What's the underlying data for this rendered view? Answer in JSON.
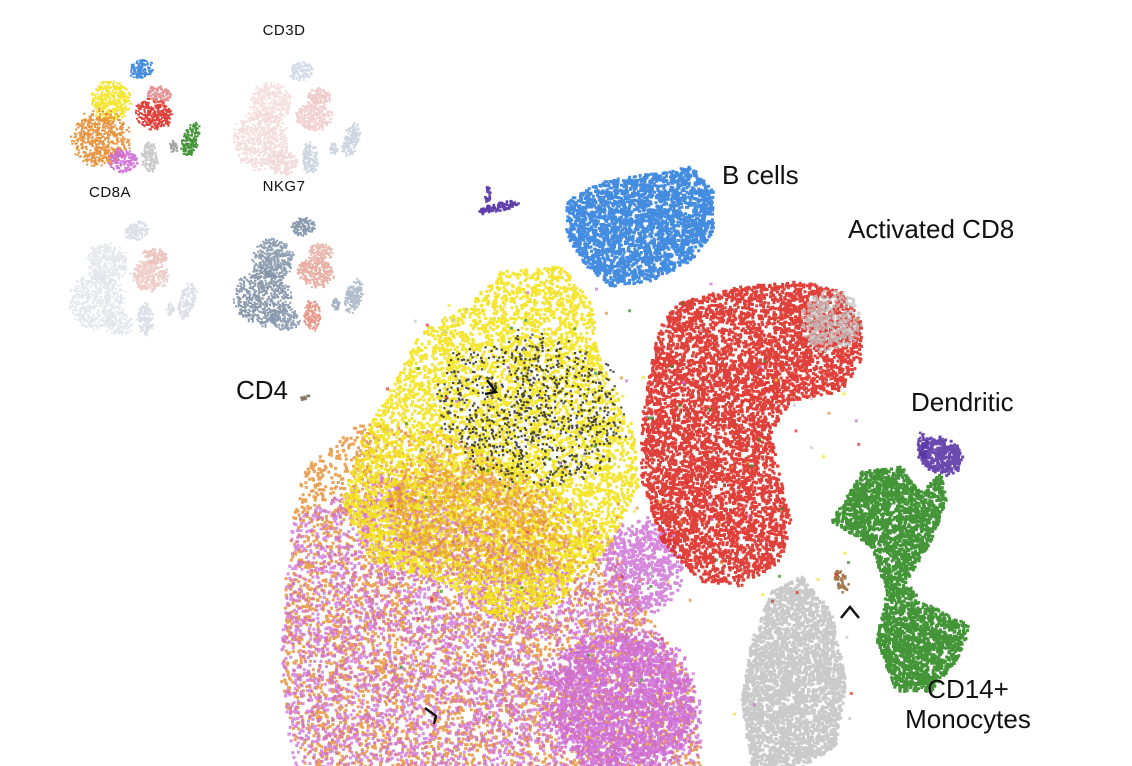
{
  "main_plot": {
    "labels": {
      "b_cells": "B cells",
      "activated_cd8": "Activated CD8",
      "cd4": "CD4",
      "dendritic": "Dendritic",
      "cd14_line1": "CD14+",
      "cd14_line2": "Monocytes"
    },
    "colors": {
      "b_cells": "#2f7fdc",
      "cd4_yellow": "#f2e21a",
      "cd4_orange": "#e58a2e",
      "cd8_red": "#dc2b25",
      "monocyte_green": "#2f8a22",
      "nk_gray": "#c4c4c4",
      "pink_purple": "#cc6ad4",
      "dendritic_purple": "#5a36a6",
      "dark_dots": "#2a2a2a"
    }
  },
  "thumbnails": [
    {
      "title": "",
      "type": "clusters"
    },
    {
      "title": "CD3D",
      "type": "expression"
    },
    {
      "title": "CD8A",
      "type": "expression"
    },
    {
      "title": "NKG7",
      "type": "expression"
    }
  ]
}
